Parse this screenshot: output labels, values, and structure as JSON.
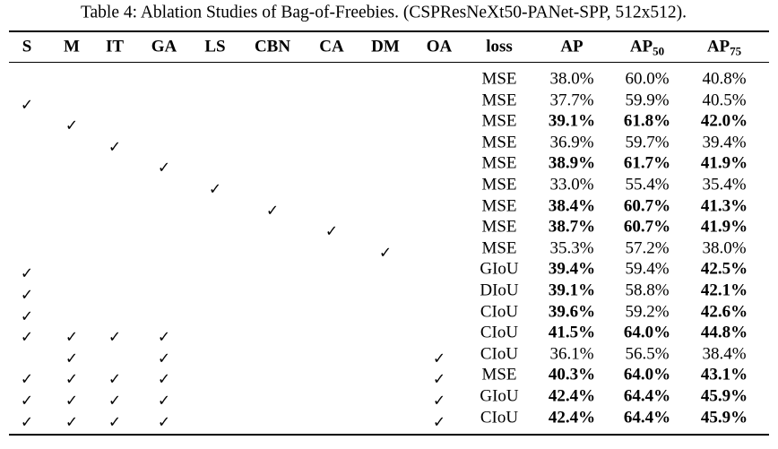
{
  "title": "Table 4: Ablation Studies of Bag-of-Freebies. (CSPResNeXt50-PANet-SPP, 512x512).",
  "table": {
    "header": [
      "S",
      "M",
      "IT",
      "GA",
      "LS",
      "CBN",
      "CA",
      "DM",
      "OA",
      "loss",
      "AP",
      {
        "text": "AP",
        "sub": "50"
      },
      {
        "text": "AP",
        "sub": "75"
      }
    ],
    "rows": [
      [
        null,
        null,
        null,
        null,
        null,
        null,
        null,
        null,
        null,
        "MSE",
        "38.0%",
        "60.0%",
        "40.8%"
      ],
      [
        "✓",
        null,
        null,
        null,
        null,
        null,
        null,
        null,
        null,
        "MSE",
        "37.7%",
        "59.9%",
        "40.5%"
      ],
      [
        null,
        "✓",
        null,
        null,
        null,
        null,
        null,
        null,
        null,
        "MSE",
        "39.1%",
        "61.8%",
        "42.0%"
      ],
      [
        null,
        null,
        "✓",
        null,
        null,
        null,
        null,
        null,
        null,
        "MSE",
        "36.9%",
        "59.7%",
        "39.4%"
      ],
      [
        null,
        null,
        null,
        "✓",
        null,
        null,
        null,
        null,
        null,
        "MSE",
        "38.9%",
        "61.7%",
        "41.9%"
      ],
      [
        null,
        null,
        null,
        null,
        "✓",
        null,
        null,
        null,
        null,
        "MSE",
        "33.0%",
        "55.4%",
        "35.4%"
      ],
      [
        null,
        null,
        null,
        null,
        null,
        "✓",
        null,
        null,
        null,
        "MSE",
        "38.4%",
        "60.7%",
        "41.3%"
      ],
      [
        null,
        null,
        null,
        null,
        null,
        null,
        "✓",
        null,
        null,
        "MSE",
        "38.7%",
        "60.7%",
        "41.9%"
      ],
      [
        null,
        null,
        null,
        null,
        null,
        null,
        null,
        "✓",
        null,
        "MSE",
        "35.3%",
        "57.2%",
        "38.0%"
      ],
      [
        "✓",
        null,
        null,
        null,
        null,
        null,
        null,
        null,
        null,
        "GIoU",
        "39.4%",
        "59.4%",
        "42.5%"
      ],
      [
        "✓",
        null,
        null,
        null,
        null,
        null,
        null,
        null,
        null,
        "DIoU",
        "39.1%",
        "58.8%",
        "42.1%"
      ],
      [
        "✓",
        null,
        null,
        null,
        null,
        null,
        null,
        null,
        null,
        "CIoU",
        "39.6%",
        "59.2%",
        "42.6%"
      ],
      [
        "✓",
        "✓",
        "✓",
        "✓",
        null,
        null,
        null,
        null,
        null,
        "CIoU",
        "41.5%",
        "64.0%",
        "44.8%"
      ],
      [
        null,
        "✓",
        null,
        "✓",
        null,
        null,
        null,
        null,
        "✓",
        "CIoU",
        "36.1%",
        "56.5%",
        "38.4%"
      ],
      [
        "✓",
        "✓",
        "✓",
        "✓",
        null,
        null,
        null,
        null,
        "✓",
        "MSE",
        "40.3%",
        "64.0%",
        "43.1%"
      ],
      [
        "✓",
        "✓",
        "✓",
        "✓",
        null,
        null,
        null,
        null,
        "✓",
        "GIoU",
        "42.4%",
        "64.4%",
        "45.9%"
      ],
      [
        "✓",
        "✓",
        "✓",
        "✓",
        null,
        null,
        null,
        null,
        "✓",
        "CIoU",
        "42.4%",
        "64.4%",
        "45.9%"
      ]
    ],
    "bold": [
      [],
      [],
      [
        10,
        11,
        12
      ],
      [],
      [
        10,
        11,
        12
      ],
      [],
      [
        10,
        11,
        12
      ],
      [
        10,
        11,
        12
      ],
      [],
      [
        10,
        12
      ],
      [
        10,
        12
      ],
      [
        10,
        12
      ],
      [
        10,
        11,
        12
      ],
      [],
      [
        10,
        11,
        12
      ],
      [
        10,
        11,
        12
      ],
      [
        10,
        11,
        12
      ]
    ]
  }
}
